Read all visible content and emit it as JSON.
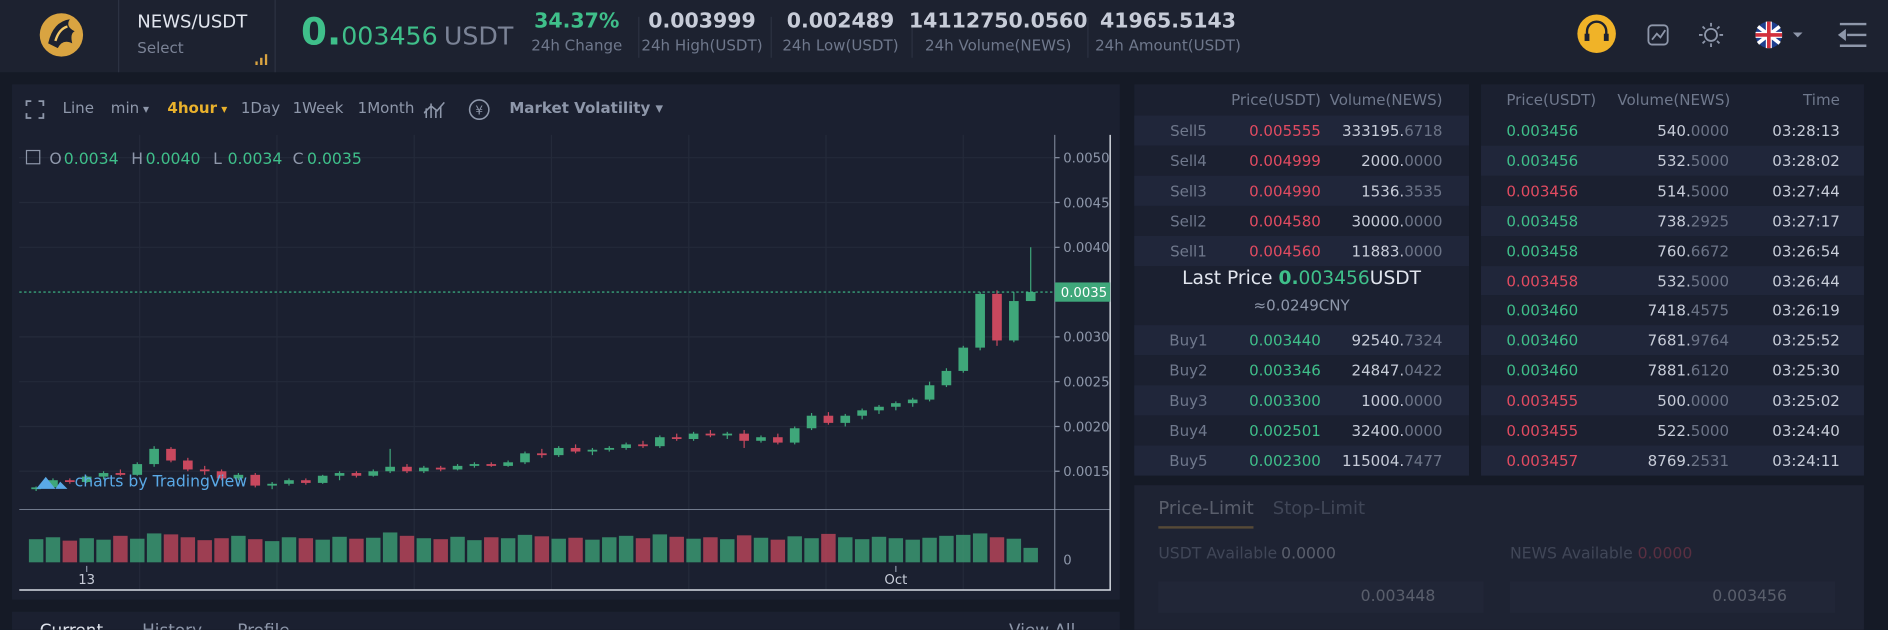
{
  "header": {
    "pair": "NEWS/USDT",
    "select": "Select",
    "price_int": "0.",
    "price_frac": "003456",
    "price_unit": "USDT",
    "stats": [
      {
        "value": "34.37%",
        "label": "24h Change",
        "color": "#3fbf8a"
      },
      {
        "value": "0.003999",
        "label": "24h High(USDT)"
      },
      {
        "value": "0.002489",
        "label": "24h Low(USDT)"
      },
      {
        "value": "14112750.0560",
        "label": "24h Volume(NEWS)"
      },
      {
        "value": "41965.5143",
        "label": "24h Amount(USDT)"
      }
    ]
  },
  "toolbar": {
    "items": [
      "Line",
      "min",
      "4hour",
      "1Day",
      "1Week",
      "1Month"
    ],
    "active": "4hour",
    "volatility": "Market Volatility"
  },
  "chart": {
    "type": "candlestick",
    "legend": [
      {
        "key": "O",
        "value": "0.0034"
      },
      {
        "key": "H",
        "value": "0.0040"
      },
      {
        "key": "L",
        "value": "0.0034"
      },
      {
        "key": "C",
        "value": "0.0035"
      }
    ],
    "watermark": "charts by TradingView",
    "up_color": "#3fa77a",
    "down_color": "#c9485e",
    "ylim": [
      0.001075,
      0.005255
    ],
    "yticks": [
      {
        "value": 0.005,
        "label": "0.0050"
      },
      {
        "value": 0.0045,
        "label": "0.0045"
      },
      {
        "value": 0.004,
        "label": "0.0040"
      },
      {
        "value": 0.003,
        "label": "0.0030"
      },
      {
        "value": 0.0025,
        "label": "0.0025"
      },
      {
        "value": 0.002,
        "label": "0.0020"
      },
      {
        "value": 0.0015,
        "label": "0.0015"
      }
    ],
    "last_price": 0.0035,
    "categories": [
      null,
      null,
      null,
      "13",
      null,
      null,
      null,
      null,
      null,
      null,
      null,
      null,
      null,
      null,
      null,
      null,
      null,
      null,
      null,
      null,
      null,
      null,
      null,
      null,
      null,
      null,
      null,
      null,
      null,
      null,
      null,
      null,
      null,
      null,
      null,
      null,
      null,
      null,
      null,
      null,
      null,
      null,
      null,
      null,
      null,
      null,
      null,
      null,
      null,
      null,
      null,
      "Oct",
      null,
      null,
      null,
      null,
      null,
      null,
      null,
      null
    ],
    "candles": [
      [
        0.0013,
        0.00133,
        0.00128,
        0.00132
      ],
      [
        0.00132,
        0.00142,
        0.00131,
        0.0014
      ],
      [
        0.0014,
        0.00142,
        0.00136,
        0.00138
      ],
      [
        0.00138,
        0.00145,
        0.00137,
        0.00144
      ],
      [
        0.00144,
        0.0015,
        0.00141,
        0.00148
      ],
      [
        0.00148,
        0.00152,
        0.00145,
        0.00146
      ],
      [
        0.00146,
        0.0016,
        0.00145,
        0.00158
      ],
      [
        0.00158,
        0.00178,
        0.00155,
        0.00175
      ],
      [
        0.00175,
        0.00177,
        0.0016,
        0.00162
      ],
      [
        0.00162,
        0.00165,
        0.0015,
        0.00152
      ],
      [
        0.00152,
        0.00156,
        0.00146,
        0.0015
      ],
      [
        0.0015,
        0.00152,
        0.0014,
        0.00142
      ],
      [
        0.00142,
        0.00148,
        0.0014,
        0.00146
      ],
      [
        0.00146,
        0.00148,
        0.00132,
        0.00134
      ],
      [
        0.00134,
        0.00138,
        0.0013,
        0.00136
      ],
      [
        0.00136,
        0.00142,
        0.00134,
        0.0014
      ],
      [
        0.0014,
        0.00142,
        0.00135,
        0.00137
      ],
      [
        0.00137,
        0.00146,
        0.00136,
        0.00145
      ],
      [
        0.00145,
        0.0015,
        0.0014,
        0.00148
      ],
      [
        0.00148,
        0.0015,
        0.00143,
        0.00145
      ],
      [
        0.00145,
        0.00152,
        0.00144,
        0.0015
      ],
      [
        0.0015,
        0.00175,
        0.00148,
        0.00155
      ],
      [
        0.00155,
        0.00158,
        0.00148,
        0.0015
      ],
      [
        0.0015,
        0.00156,
        0.00148,
        0.00154
      ],
      [
        0.00154,
        0.00156,
        0.0015,
        0.00152
      ],
      [
        0.00152,
        0.00158,
        0.00151,
        0.00156
      ],
      [
        0.00156,
        0.0016,
        0.00154,
        0.00158
      ],
      [
        0.00158,
        0.0016,
        0.00155,
        0.00156
      ],
      [
        0.00156,
        0.00162,
        0.00155,
        0.0016
      ],
      [
        0.0016,
        0.00172,
        0.00158,
        0.0017
      ],
      [
        0.0017,
        0.00175,
        0.00165,
        0.00168
      ],
      [
        0.00168,
        0.00178,
        0.00166,
        0.00176
      ],
      [
        0.00176,
        0.0018,
        0.0017,
        0.00172
      ],
      [
        0.00172,
        0.00176,
        0.00168,
        0.00174
      ],
      [
        0.00174,
        0.00178,
        0.00172,
        0.00176
      ],
      [
        0.00176,
        0.00182,
        0.00174,
        0.0018
      ],
      [
        0.0018,
        0.00184,
        0.00176,
        0.00178
      ],
      [
        0.00178,
        0.0019,
        0.00176,
        0.00188
      ],
      [
        0.00188,
        0.00192,
        0.00184,
        0.00186
      ],
      [
        0.00186,
        0.00194,
        0.00184,
        0.00192
      ],
      [
        0.00192,
        0.00196,
        0.00188,
        0.0019
      ],
      [
        0.0019,
        0.00194,
        0.00186,
        0.00192
      ],
      [
        0.00192,
        0.00196,
        0.00176,
        0.00184
      ],
      [
        0.00184,
        0.0019,
        0.00182,
        0.00188
      ],
      [
        0.00188,
        0.00192,
        0.0018,
        0.00182
      ],
      [
        0.00182,
        0.002,
        0.0018,
        0.00198
      ],
      [
        0.00198,
        0.00215,
        0.00196,
        0.00212
      ],
      [
        0.00212,
        0.00216,
        0.00202,
        0.00204
      ],
      [
        0.00204,
        0.00214,
        0.002,
        0.00212
      ],
      [
        0.00212,
        0.0022,
        0.00208,
        0.00218
      ],
      [
        0.00218,
        0.00224,
        0.00214,
        0.00222
      ],
      [
        0.00222,
        0.00228,
        0.00218,
        0.00226
      ],
      [
        0.00226,
        0.00232,
        0.00222,
        0.0023
      ],
      [
        0.0023,
        0.0025,
        0.00228,
        0.00246
      ],
      [
        0.00246,
        0.00265,
        0.00244,
        0.00262
      ],
      [
        0.00262,
        0.0029,
        0.0026,
        0.00288
      ],
      [
        0.00288,
        0.0035,
        0.00285,
        0.00348
      ],
      [
        0.00348,
        0.00352,
        0.0029,
        0.00296
      ],
      [
        0.00296,
        0.0035,
        0.00294,
        0.0034
      ],
      [
        0.0034,
        0.004,
        0.0034,
        0.0035
      ]
    ],
    "volume_ylim": [
      0,
      100
    ],
    "volume_yticks": [
      0
    ],
    "volumes": [
      48,
      52,
      45,
      50,
      47,
      55,
      49,
      60,
      58,
      52,
      46,
      50,
      55,
      48,
      44,
      52,
      50,
      47,
      53,
      49,
      51,
      62,
      55,
      50,
      48,
      53,
      46,
      52,
      50,
      57,
      54,
      49,
      51,
      47,
      52,
      55,
      50,
      58,
      53,
      49,
      52,
      48,
      56,
      51,
      47,
      54,
      50,
      59,
      52,
      48,
      53,
      50,
      47,
      51,
      55,
      57,
      60,
      52,
      49,
      30
    ]
  },
  "orderbook": {
    "headers": [
      "Price(USDT)",
      "Volume(NEWS)"
    ],
    "sells": [
      {
        "label": "Sell5",
        "price": "0.005555",
        "volume": "333195.6718"
      },
      {
        "label": "Sell4",
        "price": "0.004999",
        "volume": "2000.0000"
      },
      {
        "label": "Sell3",
        "price": "0.004990",
        "volume": "1536.3535"
      },
      {
        "label": "Sell2",
        "price": "0.004580",
        "volume": "30000.0000"
      },
      {
        "label": "Sell1",
        "price": "0.004560",
        "volume": "11883.0000"
      }
    ],
    "last_price": {
      "label": "Last Price",
      "int": "0.",
      "frac": "003456",
      "unit": "USDT",
      "cny": "≈0.0249CNY"
    },
    "buys": [
      {
        "label": "Buy1",
        "price": "0.003440",
        "volume": "92540.7324"
      },
      {
        "label": "Buy2",
        "price": "0.003346",
        "volume": "24847.0422"
      },
      {
        "label": "Buy3",
        "price": "0.003300",
        "volume": "1000.0000"
      },
      {
        "label": "Buy4",
        "price": "0.002501",
        "volume": "32400.0000"
      },
      {
        "label": "Buy5",
        "price": "0.002300",
        "volume": "115004.7477"
      }
    ]
  },
  "trades": {
    "headers": [
      "Price(USDT)",
      "Volume(NEWS)",
      "Time"
    ],
    "rows": [
      {
        "price": "0.003456",
        "volume": "540.0000",
        "time": "03:28:13",
        "side": "buy"
      },
      {
        "price": "0.003456",
        "volume": "532.5000",
        "time": "03:28:02",
        "side": "buy"
      },
      {
        "price": "0.003456",
        "volume": "514.5000",
        "time": "03:27:44",
        "side": "sell"
      },
      {
        "price": "0.003458",
        "volume": "738.2925",
        "time": "03:27:17",
        "side": "buy"
      },
      {
        "price": "0.003458",
        "volume": "760.6672",
        "time": "03:26:54",
        "side": "buy"
      },
      {
        "price": "0.003458",
        "volume": "532.5000",
        "time": "03:26:44",
        "side": "sell"
      },
      {
        "price": "0.003460",
        "volume": "7418.4575",
        "time": "03:26:19",
        "side": "buy"
      },
      {
        "price": "0.003460",
        "volume": "7681.9764",
        "time": "03:25:52",
        "side": "buy"
      },
      {
        "price": "0.003460",
        "volume": "7881.6120",
        "time": "03:25:30",
        "side": "buy"
      },
      {
        "price": "0.003455",
        "volume": "500.0000",
        "time": "03:25:02",
        "side": "sell"
      },
      {
        "price": "0.003455",
        "volume": "522.5000",
        "time": "03:24:40",
        "side": "sell"
      },
      {
        "price": "0.003457",
        "volume": "8769.2531",
        "time": "03:24:11",
        "side": "sell"
      }
    ]
  },
  "order_form": {
    "tabs": [
      "Price-Limit",
      "Stop-Limit"
    ],
    "usdt_label": "USDT Available",
    "usdt_value": "0.0000",
    "news_label": "NEWS Available",
    "news_value": "0.0000",
    "buy_price": "0.003448",
    "sell_price": "0.003456"
  },
  "orders": {
    "tabs": [
      "Current",
      "History",
      "Profile"
    ],
    "view_all": "View All"
  }
}
